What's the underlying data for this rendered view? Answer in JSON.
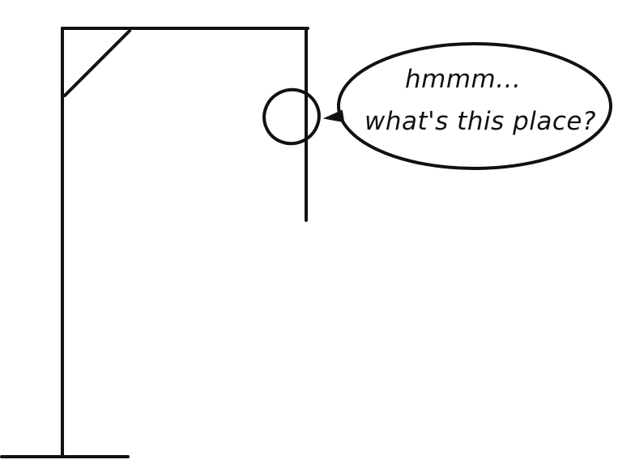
{
  "speech": {
    "line1": "hmmm...",
    "line2": "what's this place?"
  },
  "colors": {
    "ink": "#111111",
    "background": "#ffffff"
  },
  "icons": {
    "head": "head-circle",
    "gallows": "gallows-frame"
  }
}
